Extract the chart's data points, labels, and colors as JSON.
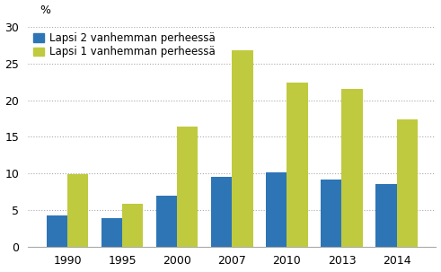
{
  "categories": [
    "1990",
    "1995",
    "2000",
    "2007",
    "2010",
    "2013",
    "2014"
  ],
  "blue_values": [
    4.2,
    3.9,
    7.0,
    9.5,
    10.1,
    9.2,
    8.6
  ],
  "green_values": [
    9.9,
    5.9,
    16.4,
    26.8,
    22.4,
    21.6,
    17.4
  ],
  "blue_color": "#2E75B6",
  "green_color": "#BFCA3E",
  "ylabel": "%",
  "ylim": [
    0,
    30
  ],
  "yticks": [
    0,
    5,
    10,
    15,
    20,
    25,
    30
  ],
  "legend_blue": "Lapsi 2 vanhemman perheessä",
  "legend_green": "Lapsi 1 vanhemman perheessä",
  "bar_width": 0.38,
  "grid_color": "#aaaaaa",
  "background_color": "#ffffff",
  "tick_fontsize": 9,
  "legend_fontsize": 8.5
}
